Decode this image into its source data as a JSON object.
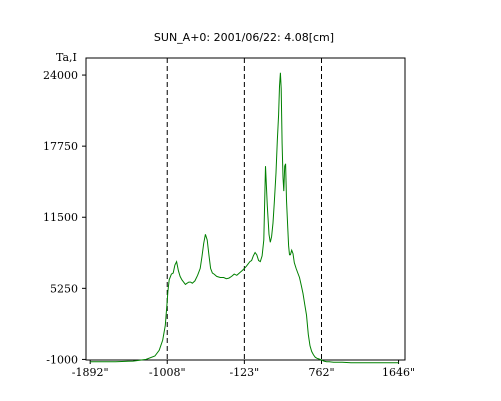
{
  "chart_data": {
    "type": "line",
    "title": "SUN_A+0: 2001/06/22: 4.08[cm]",
    "ylabel": "Ta,I",
    "xlabel": "",
    "xlim": [
      -1940,
      1720
    ],
    "ylim": [
      -1050,
      25500
    ],
    "x_ticks": [
      -1892,
      -1008,
      -123,
      762,
      1646
    ],
    "x_tick_labels": [
      "-1892\"",
      "-1008\"",
      "-123\"",
      "762\"",
      "1646\""
    ],
    "y_ticks": [
      -1000,
      5250,
      11500,
      17750,
      24000
    ],
    "y_tick_labels": [
      "-1000",
      "5250",
      "11500",
      "17750",
      "24000"
    ],
    "vlines": [
      -1008,
      -123,
      762
    ],
    "grid": false,
    "series": [
      {
        "color": "#008000",
        "x": [
          -1892,
          -1600,
          -1400,
          -1250,
          -1150,
          -1100,
          -1060,
          -1030,
          -1010,
          -1000,
          -985,
          -960,
          -940,
          -920,
          -900,
          -880,
          -860,
          -840,
          -820,
          -800,
          -780,
          -760,
          -740,
          -720,
          -690,
          -660,
          -630,
          -610,
          -590,
          -570,
          -550,
          -530,
          -510,
          -490,
          -470,
          -440,
          -400,
          -360,
          -330,
          -300,
          -270,
          -240,
          -210,
          -180,
          -150,
          -123,
          -100,
          -80,
          -60,
          -40,
          -20,
          0,
          20,
          40,
          60,
          80,
          100,
          120,
          140,
          160,
          175,
          190,
          205,
          220,
          240,
          255,
          270,
          280,
          290,
          300,
          310,
          320,
          330,
          340,
          350,
          360,
          375,
          385,
          395,
          405,
          420,
          435,
          450,
          470,
          490,
          510,
          530,
          550,
          570,
          590,
          610,
          630,
          650,
          670,
          690,
          710,
          730,
          762,
          790,
          820,
          850,
          900,
          950,
          1000,
          1100,
          1200,
          1300,
          1400,
          1500,
          1646
        ],
        "y": [
          -1200,
          -1200,
          -1150,
          -1000,
          -700,
          -200,
          700,
          2000,
          4000,
          5000,
          6000,
          6500,
          6600,
          7300,
          7600,
          6800,
          6300,
          6000,
          5800,
          5600,
          5700,
          5800,
          5800,
          5700,
          5900,
          6400,
          7000,
          8000,
          9200,
          10000,
          9500,
          8200,
          7000,
          6600,
          6500,
          6300,
          6200,
          6200,
          6100,
          6150,
          6300,
          6500,
          6400,
          6600,
          6800,
          7000,
          7200,
          7400,
          7600,
          7700,
          8100,
          8400,
          8200,
          7700,
          7600,
          8100,
          9500,
          16000,
          12500,
          10000,
          9300,
          9800,
          11000,
          12800,
          15400,
          18200,
          20500,
          23000,
          24200,
          22800,
          18000,
          15000,
          13800,
          16000,
          16200,
          13000,
          10500,
          9000,
          8200,
          8200,
          8600,
          8300,
          7500,
          7000,
          6600,
          6200,
          5500,
          4800,
          3800,
          2900,
          1200,
          200,
          -300,
          -600,
          -800,
          -900,
          -950,
          -1050,
          -1150,
          -1200,
          -1200,
          -1250,
          -1250,
          -1250,
          -1300,
          -1300,
          -1300,
          -1300,
          -1300,
          -1300
        ]
      }
    ]
  }
}
